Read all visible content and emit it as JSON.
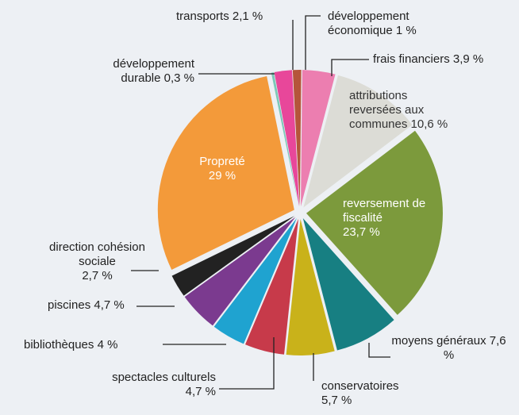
{
  "chart_data": {
    "type": "pie",
    "categories": [
      "développement économique",
      "frais financiers",
      "attributions reversées aux communes",
      "reversement de fiscalité",
      "moyens généraux",
      "conservatoires",
      "spectacles culturels",
      "bibliothèques",
      "piscines",
      "direction cohésion sociale",
      "Propreté",
      "développement durable",
      "transports"
    ],
    "values": [
      1,
      3.9,
      10.6,
      23.7,
      7.6,
      5.7,
      4.7,
      4,
      4.7,
      2.7,
      29,
      0.3,
      2.1
    ],
    "value_labels": [
      "1 %",
      "3,9 %",
      "10,6 %",
      "23,7 %",
      "7,6 %",
      "5,7 %",
      "4,7 %",
      "4 %",
      "4,7 %",
      "2,7 %",
      "29 %",
      "0,3 %",
      "2,1 %"
    ],
    "colors": [
      "#b5553a",
      "#ec7eb0",
      "#dcdcd6",
      "#7c9a3c",
      "#177f82",
      "#c9b21a",
      "#c73a4a",
      "#1fa3d0",
      "#7b3a8f",
      "#222222",
      "#f39a3a",
      "#7cc8b8",
      "#e8479a"
    ]
  }
}
